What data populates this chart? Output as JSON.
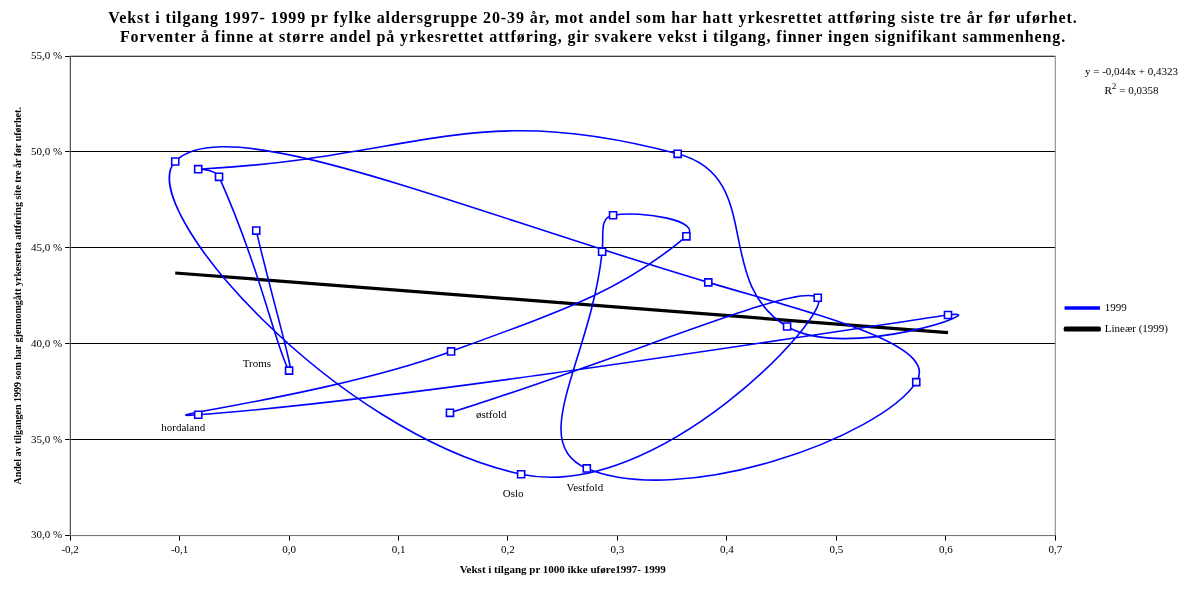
{
  "chart_data": {
    "type": "line",
    "title": "Vekst i tilgang 1997- 1999 pr fylke aldersgruppe 20-39 år, mot andel som har hatt yrkesrettet attføring siste tre år før uførhet. Forventer å finne at større andel på yrkesrettet attføring, gir svakere vekst i tilgang, finner ingen signifikant sammenheng.",
    "xlabel": "Vekst i tilgang pr 1000 ikke uføre1997- 1999",
    "ylabel": "Andel av tilgangen 1999 som har gjennomgått yrkesretta attføring site tre år før uførhet.",
    "series": [
      {
        "name": "1999",
        "type": "line",
        "color": "#0000ff",
        "marker": "square",
        "x": [
          0.147,
          0.483,
          0.212,
          -0.104,
          0.383,
          0.573,
          0.272,
          0.286,
          0.296,
          0.363,
          0.148,
          -0.083,
          0.602,
          0.455,
          0.355,
          -0.083,
          -0.064,
          0.0,
          -0.03
        ],
        "values": [
          36.4,
          42.4,
          33.2,
          49.5,
          43.2,
          38.0,
          33.5,
          44.8,
          46.7,
          45.6,
          39.6,
          36.3,
          41.5,
          40.9,
          49.9,
          49.1,
          48.7,
          38.6,
          45.9
        ]
      },
      {
        "name": "Lineær (1999)",
        "type": "line",
        "color": "#000000",
        "marker": "none",
        "x": [
          -0.104,
          0.602
        ],
        "values": [
          43.69,
          40.58
        ]
      }
    ],
    "xlim": [
      -0.2,
      0.7
    ],
    "xticks": [
      {
        "value": -0.2,
        "label": "-0,2"
      },
      {
        "value": -0.1,
        "label": "-0,1"
      },
      {
        "value": 0,
        "label": "0,0"
      },
      {
        "value": 0.1,
        "label": "0,1"
      },
      {
        "value": 0.2,
        "label": "0,2"
      },
      {
        "value": 0.3,
        "label": "0,3"
      },
      {
        "value": 0.4,
        "label": "0,4"
      },
      {
        "value": 0.5,
        "label": "0,5"
      },
      {
        "value": 0.6,
        "label": "0,6"
      },
      {
        "value": 0.7,
        "label": "0,7"
      }
    ],
    "ylim": [
      30,
      55
    ],
    "yticks": [
      {
        "value": 30,
        "label": "30,0 %"
      },
      {
        "value": 35,
        "label": "35,0 %"
      },
      {
        "value": 40,
        "label": "40,0 %"
      },
      {
        "value": 45,
        "label": "45,0 %"
      },
      {
        "value": 50,
        "label": "50,0 %"
      },
      {
        "value": 55,
        "label": "55,0 %"
      }
    ],
    "grid": "y",
    "legend": "right",
    "annotations": [
      {
        "text": "østfold",
        "x": 0.147,
        "y": 36.4
      },
      {
        "text": "Oslo",
        "x": 0.212,
        "y": 33.2
      },
      {
        "text": "Vestfold",
        "x": 0.272,
        "y": 33.5
      },
      {
        "text": "hordaland",
        "x": -0.083,
        "y": 36.3
      },
      {
        "text": "Troms",
        "x": 0.0,
        "y": 38.6
      },
      "y = -0,044x + 0,4323",
      "R$^{2}$ = 0,0358"
    ]
  }
}
